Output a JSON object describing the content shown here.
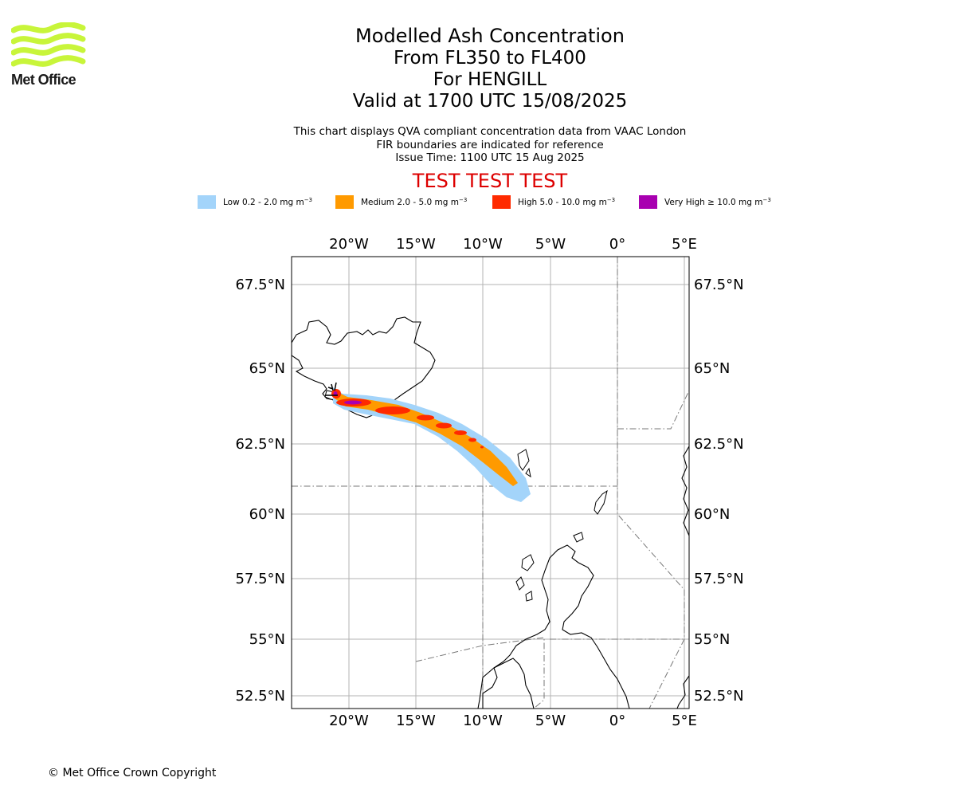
{
  "logo": {
    "text": "Met Office"
  },
  "title": {
    "line1": "Modelled Ash Concentration",
    "line2": "From FL350 to FL400",
    "line3": "For HENGILL",
    "line4": "Valid at 1700 UTC 15/08/2025"
  },
  "subtitle": {
    "line1": "This chart displays QVA compliant concentration data from VAAC London",
    "line2": "FIR boundaries are indicated for reference",
    "line3": "Issue Time: 1100 UTC 15 Aug 2025"
  },
  "test_banner": "TEST TEST TEST",
  "legend": [
    {
      "label": "Low 0.2 - 2.0 mg m",
      "color": "#a3d4fa"
    },
    {
      "label": "Medium 2.0 - 5.0 mg m",
      "color": "#ff9a00"
    },
    {
      "label": "High 5.0 - 10.0 mg m",
      "color": "#ff2a00"
    },
    {
      "label": "Very High ≥ 10.0 mg m",
      "color": "#a800b0"
    }
  ],
  "legend_exponent": "−3",
  "map": {
    "lon_ticks": [
      "20°W",
      "15°W",
      "10°W",
      "5°W",
      "0°",
      "5°E"
    ],
    "lat_ticks": [
      "67.5°N",
      "65°N",
      "62.5°N",
      "60°N",
      "57.5°N",
      "55°N",
      "52.5°N"
    ],
    "lon_range": [
      -24.3,
      5.3
    ],
    "lat_range": [
      52.0,
      68.4
    ]
  },
  "copyright": "© Met Office Crown Copyright"
}
